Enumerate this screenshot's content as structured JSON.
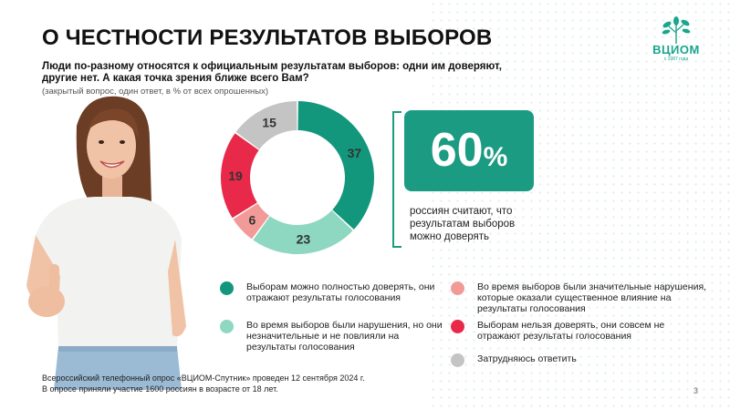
{
  "title": "О ЧЕСТНОСТИ РЕЗУЛЬТАТОВ ВЫБОРОВ",
  "question_line1": "Люди по-разному относятся к официальным результатам выборов: одни им доверяют,",
  "question_line2": "другие нет. А какая точка зрения ближе всего Вам?",
  "subnote": "(закрытый вопрос, один ответ, в % от всех опрошенных)",
  "logo": {
    "name": "ВЦИОМ",
    "sub": "с 1987 года"
  },
  "highlight": {
    "value": "60",
    "suffix": "%",
    "caption": "россиян считают, что результатам выборов можно доверять"
  },
  "chart_data": {
    "type": "pie",
    "donut": true,
    "slices": [
      {
        "label": "Выборам можно полностью доверять, они отражают результаты голосования",
        "value": 37,
        "color": "#12977c"
      },
      {
        "label": "Во время выборов были нарушения, но они незначительные и не повлияли на результаты голосования",
        "value": 23,
        "color": "#8ed7c0"
      },
      {
        "label": "Во время выборов были значительные нарушения, которые оказали существенное влияние на результаты голосования",
        "value": 6,
        "color": "#f29a98"
      },
      {
        "label": "Выборам нельзя доверять, они совсем не отражают результаты голосования",
        "value": 19,
        "color": "#e8294a"
      },
      {
        "label": "Затрудняюсь ответить",
        "value": 15,
        "color": "#c4c4c4"
      }
    ]
  },
  "legend": [
    {
      "label": "Выборам можно полностью доверять, они отражают результаты голосования",
      "color": "#12977c"
    },
    {
      "label": "Во время выборов были нарушения, но они незначительные и не повлияли на результаты голосования",
      "color": "#8ed7c0"
    },
    {
      "label": "Во время выборов были значительные нарушения, которые оказали существенное влияние на результаты голосования",
      "color": "#f29a98"
    },
    {
      "label": "Выборам нельзя доверять, они совсем не отражают результаты голосования",
      "color": "#e8294a"
    },
    {
      "label": "Затрудняюсь ответить",
      "color": "#c4c4c4"
    }
  ],
  "footer_line1": "Всероссийский телефонный опрос «ВЦИОМ-Спутник» проведен 12 сентября 2024 г.",
  "footer_line2": "В опросе приняли участие 1600 россиян в возрасте от 18 лет.",
  "page_number": "3"
}
